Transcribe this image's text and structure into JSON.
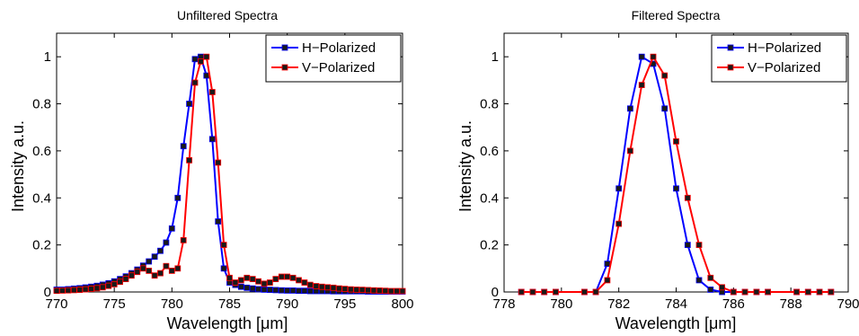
{
  "colors": {
    "h": "#0000ff",
    "v": "#ff0000",
    "marker_fill": "#1a1a1a"
  },
  "chart_data": [
    {
      "type": "line",
      "title": "Unfiltered Spectra",
      "xlabel": "Wavelength [μm]",
      "ylabel": "Intensity a.u.",
      "xlim": [
        770,
        800
      ],
      "ylim": [
        0,
        1.1
      ],
      "xticks": [
        770,
        775,
        780,
        785,
        790,
        795,
        800
      ],
      "yticks": [
        0,
        0.2,
        0.4,
        0.6,
        0.8,
        1
      ],
      "ytick_labels": [
        "0",
        "0.2",
        "0.4",
        "0.6",
        "0.8",
        "1"
      ],
      "legend": {
        "position": "top-right",
        "entries": [
          "H−Polarized",
          "V−Polarized"
        ]
      },
      "series": [
        {
          "name": "H−Polarized",
          "color": "#0000ff",
          "x": [
            770,
            770.5,
            771,
            771.5,
            772,
            772.5,
            773,
            773.5,
            774,
            774.5,
            775,
            775.5,
            776,
            776.5,
            777,
            777.5,
            778,
            778.5,
            779,
            779.5,
            780,
            780.5,
            781,
            781.5,
            782,
            782.5,
            783,
            783.5,
            784,
            784.5,
            785,
            785.5,
            786,
            786.5,
            787,
            787.5,
            788,
            788.5,
            789,
            789.5,
            790,
            790.5,
            791,
            791.5,
            792,
            792.5,
            793,
            793.5,
            794,
            794.5,
            795,
            795.5,
            796,
            796.5,
            797,
            797.5,
            798,
            798.5,
            799,
            799.5,
            800
          ],
          "y": [
            0.01,
            0.01,
            0.012,
            0.014,
            0.016,
            0.019,
            0.022,
            0.026,
            0.031,
            0.037,
            0.045,
            0.055,
            0.066,
            0.08,
            0.095,
            0.112,
            0.13,
            0.15,
            0.175,
            0.21,
            0.27,
            0.4,
            0.62,
            0.8,
            0.99,
            1.0,
            0.92,
            0.65,
            0.3,
            0.1,
            0.04,
            0.03,
            0.022,
            0.018,
            0.015,
            0.012,
            0.01,
            0.009,
            0.008,
            0.007,
            0.006,
            0.006,
            0.005,
            0.005,
            0.004,
            0.004,
            0.004,
            0.004,
            0.003,
            0.003,
            0.003,
            0.003,
            0.003,
            0.003,
            0.002,
            0.002,
            0.002,
            0.002,
            0.002,
            0.002,
            0.002
          ]
        },
        {
          "name": "V−Polarized",
          "color": "#ff0000",
          "x": [
            770,
            770.5,
            771,
            771.5,
            772,
            772.5,
            773,
            773.5,
            774,
            774.5,
            775,
            775.5,
            776,
            776.5,
            777,
            777.5,
            778,
            778.5,
            779,
            779.5,
            780,
            780.5,
            781,
            781.5,
            782,
            782.5,
            783,
            783.5,
            784,
            784.5,
            785,
            785.5,
            786,
            786.5,
            787,
            787.5,
            788,
            788.5,
            789,
            789.5,
            790,
            790.5,
            791,
            791.5,
            792,
            792.5,
            793,
            793.5,
            794,
            794.5,
            795,
            795.5,
            796,
            796.5,
            797,
            797.5,
            798,
            798.5,
            799,
            799.5,
            800
          ],
          "y": [
            0.005,
            0.006,
            0.007,
            0.008,
            0.009,
            0.011,
            0.013,
            0.016,
            0.02,
            0.026,
            0.033,
            0.043,
            0.055,
            0.07,
            0.085,
            0.1,
            0.09,
            0.07,
            0.08,
            0.11,
            0.09,
            0.1,
            0.22,
            0.56,
            0.89,
            0.98,
            1.0,
            0.85,
            0.55,
            0.2,
            0.06,
            0.04,
            0.05,
            0.06,
            0.055,
            0.045,
            0.035,
            0.04,
            0.055,
            0.065,
            0.065,
            0.06,
            0.05,
            0.04,
            0.03,
            0.025,
            0.022,
            0.02,
            0.018,
            0.015,
            0.013,
            0.011,
            0.01,
            0.009,
            0.008,
            0.007,
            0.006,
            0.005,
            0.004,
            0.004,
            0.004
          ]
        }
      ]
    },
    {
      "type": "line",
      "title": "Filtered Spectra",
      "xlabel": "Wavelength [μm]",
      "ylabel": "Intensity a.u.",
      "xlim": [
        778,
        790
      ],
      "ylim": [
        0,
        1.1
      ],
      "xticks": [
        778,
        780,
        782,
        784,
        786,
        788,
        790
      ],
      "yticks": [
        0,
        0.2,
        0.4,
        0.6,
        0.8,
        1
      ],
      "ytick_labels": [
        "0",
        "0.2",
        "0.4",
        "0.6",
        "0.8",
        "1"
      ],
      "legend": {
        "position": "top-right",
        "entries": [
          "H−Polarized",
          "V−Polarized"
        ]
      },
      "series": [
        {
          "name": "H−Polarized",
          "color": "#0000ff",
          "x": [
            778.6,
            779,
            779.4,
            779.8,
            780.8,
            781.2,
            781.6,
            782,
            782.4,
            782.8,
            783.2,
            783.6,
            784,
            784.4,
            784.8,
            785.2,
            785.6,
            786,
            786.4,
            786.8,
            787.2,
            788.2,
            788.6,
            789,
            789.4
          ],
          "y": [
            0,
            0,
            0,
            0,
            0,
            0,
            0.12,
            0.44,
            0.78,
            1.0,
            0.97,
            0.78,
            0.44,
            0.2,
            0.05,
            0.01,
            0,
            0,
            0,
            0,
            0,
            0,
            0,
            0,
            0
          ]
        },
        {
          "name": "V−Polarized",
          "color": "#ff0000",
          "x": [
            778.6,
            779,
            779.4,
            779.8,
            780.8,
            781.2,
            781.6,
            782,
            782.4,
            782.8,
            783.2,
            783.6,
            784,
            784.4,
            784.8,
            785.2,
            785.6,
            786,
            786.4,
            786.8,
            787.2,
            788.2,
            788.6,
            789,
            789.4
          ],
          "y": [
            0,
            0,
            0,
            0,
            0,
            0,
            0.05,
            0.29,
            0.6,
            0.88,
            1.0,
            0.92,
            0.64,
            0.4,
            0.2,
            0.06,
            0.02,
            0,
            0,
            0,
            0,
            0,
            0,
            0,
            0
          ]
        }
      ]
    }
  ]
}
